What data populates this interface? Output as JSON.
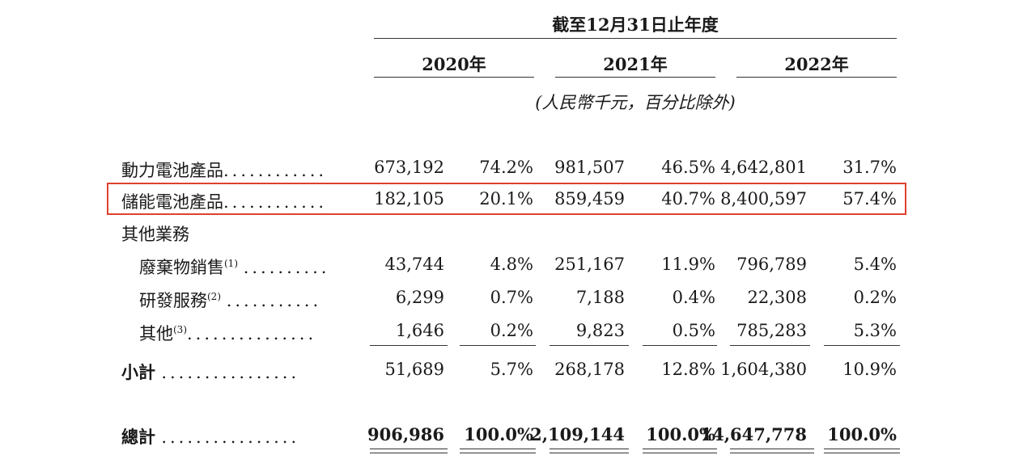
{
  "header": {
    "period": "截至12月31日止年度",
    "years": [
      "2020年",
      "2021年",
      "2022年"
    ],
    "unit_note": "(人民幣千元，百分比除外)"
  },
  "rows": [
    {
      "label": "動力電池產品",
      "sup": "",
      "dots": "............",
      "values": [
        "673,192",
        "74.2%",
        "981,507",
        "46.5%",
        "4,642,801",
        "31.7%"
      ]
    },
    {
      "label": "儲能電池產品",
      "sup": "",
      "dots": "............",
      "values": [
        "182,105",
        "20.1%",
        "859,459",
        "40.7%",
        "8,400,597",
        "57.4%"
      ]
    },
    {
      "label": "其他業務",
      "sup": "",
      "dots": "",
      "values": []
    },
    {
      "label": "廢棄物銷售",
      "sup": "(1)",
      "dots": "..........",
      "values": [
        "43,744",
        "4.8%",
        "251,167",
        "11.9%",
        "796,789",
        "5.4%"
      ]
    },
    {
      "label": "研發服務",
      "sup": "(2)",
      "dots": "...........",
      "values": [
        "6,299",
        "0.7%",
        "7,188",
        "0.4%",
        "22,308",
        "0.2%"
      ]
    },
    {
      "label": "其他",
      "sup": "(3)",
      "dots": "...............",
      "values": [
        "1,646",
        "0.2%",
        "9,823",
        "0.5%",
        "785,283",
        "5.3%"
      ]
    },
    {
      "label": "小計",
      "sup": "",
      "dots": "................",
      "values": [
        "51,689",
        "5.7%",
        "268,178",
        "12.8%",
        "1,604,380",
        "10.9%"
      ]
    },
    {
      "label": "總計",
      "sup": "",
      "dots": "................",
      "values": [
        "906,986",
        "100.0%",
        "2,109,144",
        "100.0%",
        "14,647,778",
        "100.0%"
      ]
    }
  ],
  "highlight_color": "#e0412f"
}
